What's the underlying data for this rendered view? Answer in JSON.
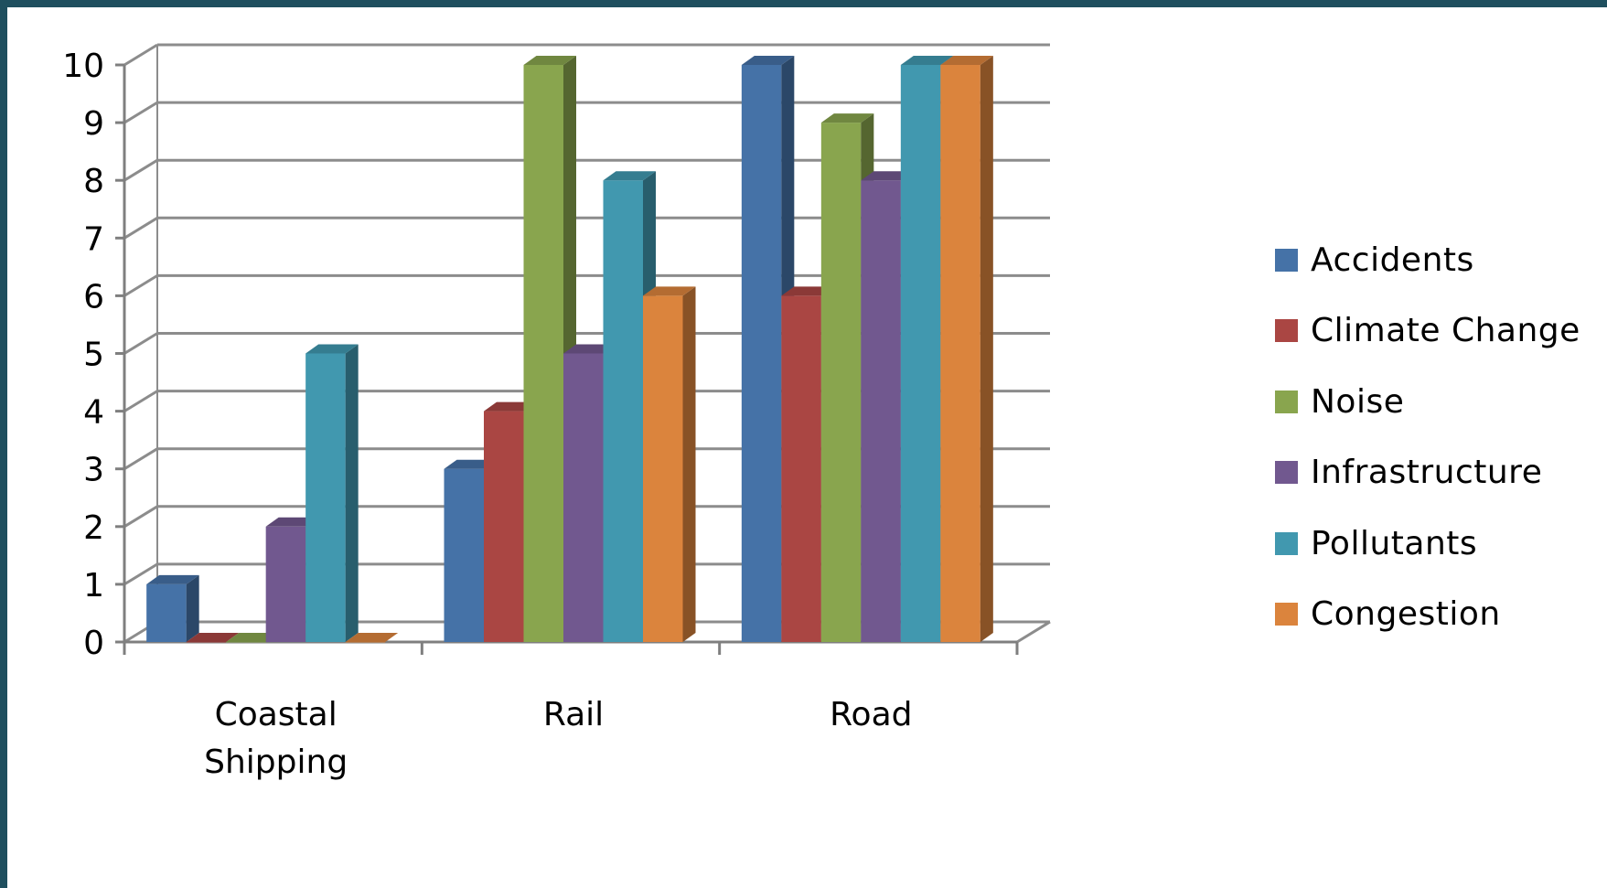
{
  "chart_data": {
    "type": "bar",
    "title": "",
    "xlabel": "",
    "ylabel": "",
    "categories": [
      "Coastal\nShipping",
      "Rail",
      "Road"
    ],
    "ylim": [
      0,
      10
    ],
    "yticks": [
      "0",
      "1",
      "2",
      "3",
      "4",
      "5",
      "6",
      "7",
      "8",
      "9",
      "10"
    ],
    "grid": true,
    "legend_position": "right",
    "series": [
      {
        "name": "Accidents",
        "color": "#4572a7",
        "values": [
          1,
          3,
          10
        ]
      },
      {
        "name": "Climate Change",
        "color": "#aa4643",
        "values": [
          0,
          4,
          6
        ]
      },
      {
        "name": "Noise",
        "color": "#89a54e",
        "values": [
          0,
          10,
          9
        ]
      },
      {
        "name": "Infrastructure",
        "color": "#71588f",
        "values": [
          2,
          5,
          8
        ]
      },
      {
        "name": "Pollutants",
        "color": "#4198af",
        "values": [
          5,
          8,
          10
        ]
      },
      {
        "name": "Congestion",
        "color": "#db843d",
        "values": [
          0,
          6,
          10
        ]
      }
    ]
  },
  "colors": {
    "frame": "#1f4f5e",
    "background": "#ffffff",
    "gridline": "#8c8c8c",
    "axis": "#7f7f7f"
  }
}
